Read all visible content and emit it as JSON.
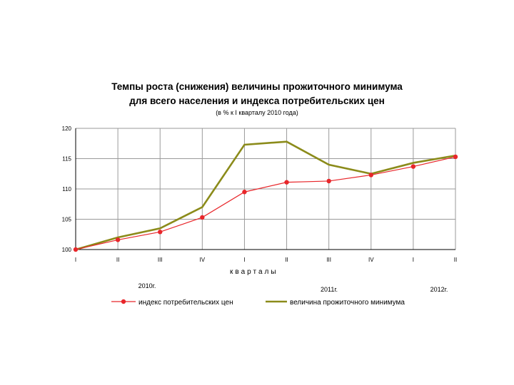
{
  "chart_data": {
    "type": "line",
    "title_line1": "Темпы роста (снижения) величины прожиточного минимума",
    "title_line2": "для всего населения и индекса потребительских цен",
    "subtitle": "(в % к I кварталу 2010 года)",
    "xlabel": "кварталы",
    "categories": [
      "I",
      "II",
      "III",
      "IV",
      "I",
      "II",
      "III",
      "IV",
      "I",
      "II"
    ],
    "year_labels": [
      "2010г.",
      "2011г.",
      "2012г."
    ],
    "ylim": [
      100,
      120
    ],
    "yticks": [
      100,
      105,
      110,
      115,
      120
    ],
    "grid": true,
    "legend_position": "bottom",
    "series": [
      {
        "name": "индекс потребительских цен",
        "color": "#e8262a",
        "marker": "circle",
        "values": [
          100,
          101.6,
          102.9,
          105.3,
          109.5,
          111.1,
          111.3,
          112.3,
          113.7,
          115.3
        ]
      },
      {
        "name": "величина прожиточного минимума",
        "color": "#8b8b1a",
        "marker": "none",
        "values": [
          100,
          102.0,
          103.5,
          107.0,
          117.3,
          117.8,
          114.0,
          112.5,
          114.3,
          115.5
        ]
      }
    ]
  }
}
